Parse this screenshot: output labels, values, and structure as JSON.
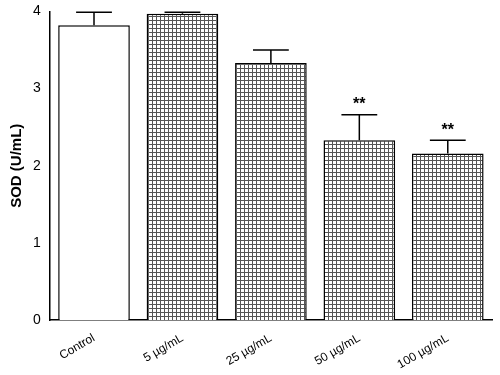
{
  "chart_data": {
    "type": "bar",
    "y_label": "SOD (U/mL)",
    "categories": [
      "Control",
      "5 µg/mL",
      "25 µg/mL",
      "50 µg/mL",
      "100 µg/mL"
    ],
    "values": [
      3.82,
      3.97,
      3.33,
      2.33,
      2.16
    ],
    "errors": [
      0.17,
      0.02,
      0.17,
      0.33,
      0.17
    ],
    "colors": [
      "#ffffff",
      "#555555",
      "#555555",
      "#555555",
      "#555555"
    ],
    "ylim": [
      0,
      4
    ],
    "yticks": [
      0,
      1,
      2,
      3,
      4
    ],
    "grid": false,
    "annotations": [
      {
        "category": "50 µg/mL",
        "text": "**"
      },
      {
        "category": "100 µg/mL",
        "text": "**"
      }
    ]
  }
}
